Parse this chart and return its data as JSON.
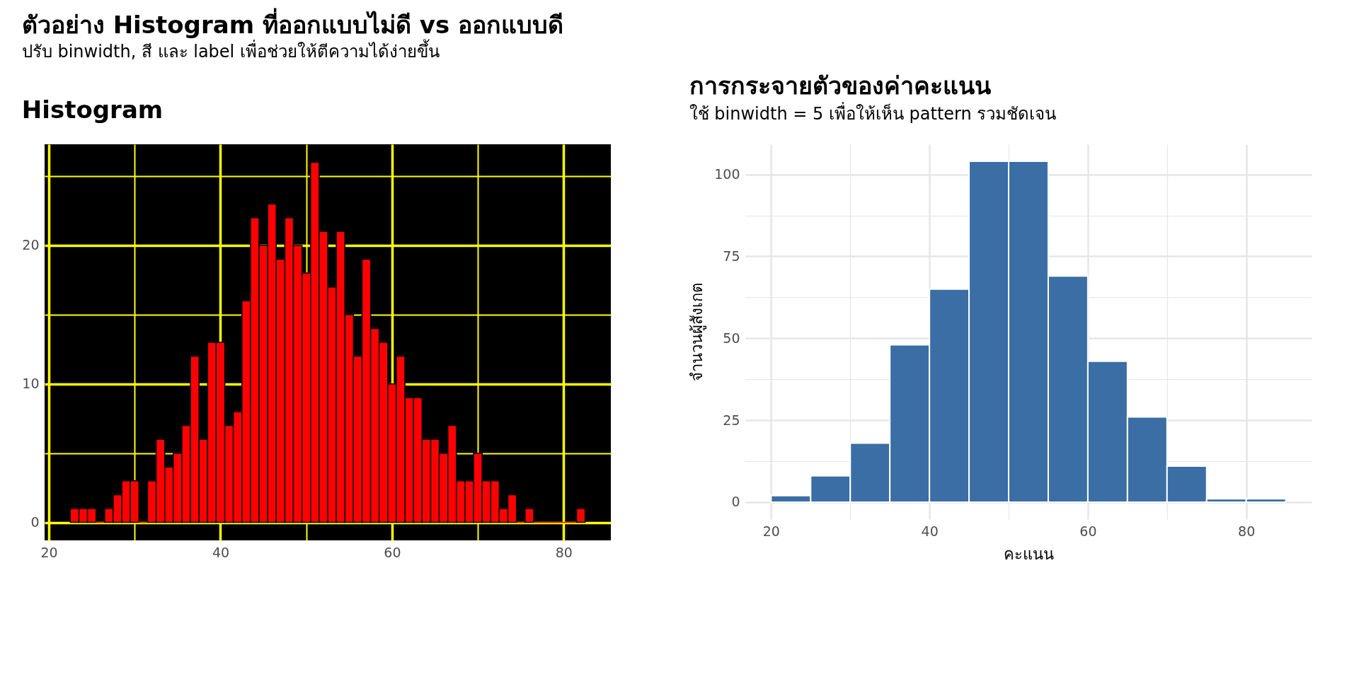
{
  "chart_data": [
    {
      "type": "histogram",
      "title": "Histogram",
      "annotations": [
        "ตัวอย่าง Histogram ที่ออกแบบไม่ดี vs ออกแบบดี",
        "ปรับ binwidth, สี และ label เพื่อช่วยให้ตีความได้ง่ายขึ้น"
      ],
      "bins": [
        22.5,
        23.5,
        24.5,
        25.5,
        26.5,
        27.5,
        28.5,
        29.5,
        30.5,
        31.5,
        32.5,
        33.5,
        34.5,
        35.5,
        36.5,
        37.5,
        38.5,
        39.5,
        40.5,
        41.5,
        42.5,
        43.5,
        44.5,
        45.5,
        46.5,
        47.5,
        48.5,
        49.5,
        50.5,
        51.5,
        52.5,
        53.5,
        54.5,
        55.5,
        56.5,
        57.5,
        58.5,
        59.5,
        60.5,
        61.5,
        62.5,
        63.5,
        64.5,
        65.5,
        66.5,
        67.5,
        68.5,
        69.5,
        70.5,
        71.5,
        72.5,
        73.5,
        74.5,
        75.5,
        76.5,
        77.5,
        78.5,
        79.5,
        80.5,
        81.5,
        82.5
      ],
      "values": [
        1,
        1,
        1,
        0,
        1,
        2,
        3,
        3,
        0,
        3,
        6,
        4,
        5,
        7,
        12,
        6,
        13,
        13,
        7,
        8,
        16,
        22,
        20,
        23,
        19,
        22,
        20,
        18,
        26,
        21,
        17,
        21,
        15,
        12,
        19,
        14,
        13,
        10,
        12,
        9,
        9,
        6,
        6,
        5,
        7,
        3,
        3,
        5,
        3,
        3,
        1,
        2,
        0,
        1,
        0,
        0,
        0,
        0,
        0,
        1
      ],
      "color": "#ff0000",
      "xlim": [
        19.5,
        85.5
      ],
      "xticks": [
        20,
        {
          "value": 30,
          "label": null
        },
        40,
        {
          "value": 50,
          "label": null
        },
        60,
        {
          "value": 70,
          "label": null
        },
        80
      ],
      "ylim": [
        -1.3,
        27.3
      ],
      "yticks": [
        0,
        {
          "value": 5,
          "label": null
        },
        10,
        {
          "value": 15,
          "label": null
        },
        20,
        {
          "value": 25,
          "label": null
        }
      ],
      "grid": true
    },
    {
      "type": "histogram",
      "title": "การกระจายตัวของค่าคะแนน",
      "subtitle": "ใช้ binwidth = 5 เพื่อให้เห็น pattern รวมชัดเจน",
      "xlabel": "คะแนน",
      "ylabel": "จำนวนผู้สังเกต",
      "bins": [
        20,
        25,
        30,
        35,
        40,
        45,
        50,
        55,
        60,
        65,
        70,
        75,
        80,
        85
      ],
      "values": [
        2,
        8,
        18,
        48,
        65,
        104,
        104,
        69,
        43,
        26,
        11,
        1,
        1
      ],
      "color": "#3a6ea5",
      "xlim": [
        16.75,
        88.25
      ],
      "xticks": [
        20,
        {
          "value": 30,
          "label": null
        },
        40,
        {
          "value": 50,
          "label": null
        },
        60,
        {
          "value": 70,
          "label": null
        },
        80
      ],
      "ylim": [
        -5.2,
        109.2
      ],
      "yticks": [
        0,
        {
          "value": 12.5,
          "label": null
        },
        25,
        {
          "value": 37.5,
          "label": null
        },
        50,
        {
          "value": 62.5,
          "label": null
        },
        75,
        {
          "value": 87.5,
          "label": null
        },
        100
      ],
      "grid": true
    }
  ]
}
